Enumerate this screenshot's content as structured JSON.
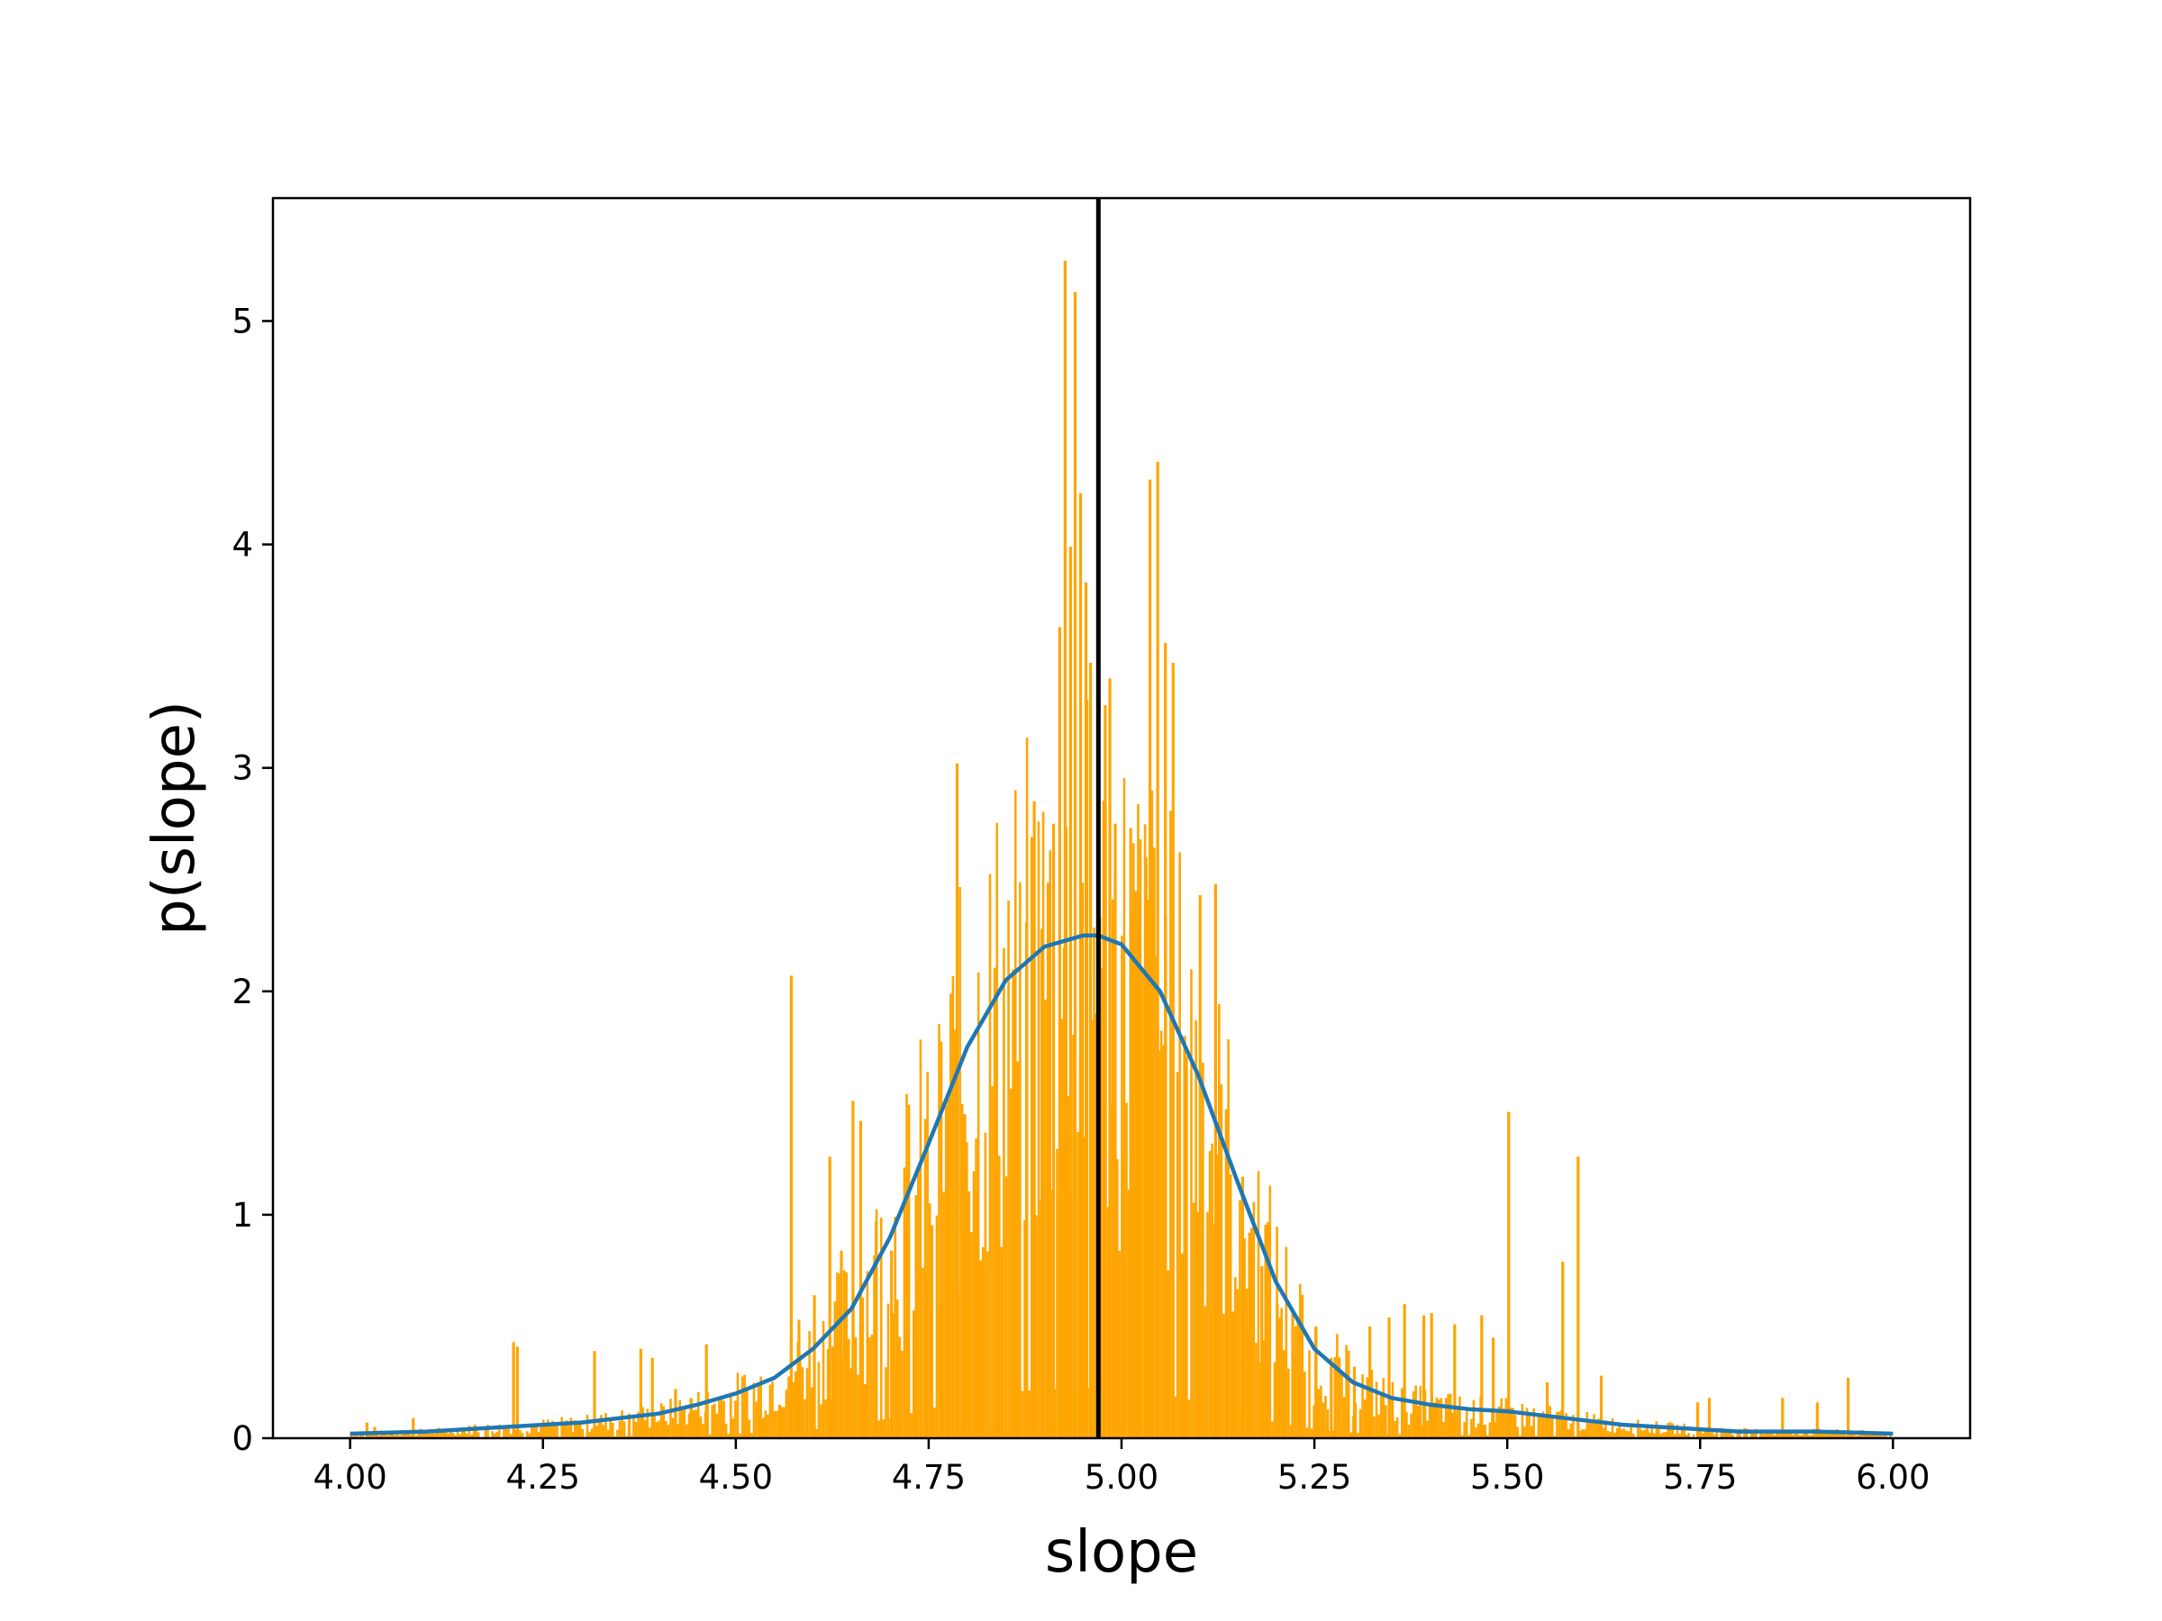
{
  "chart_data": {
    "type": "bar",
    "xlabel": "slope",
    "ylabel": "p(slope)",
    "xlim": [
      3.9,
      6.1
    ],
    "ylim": [
      0,
      5.55
    ],
    "x_ticks": [
      4.0,
      4.25,
      4.5,
      4.75,
      5.0,
      5.25,
      5.5,
      5.75,
      6.0
    ],
    "x_tick_labels": [
      "4.00",
      "4.25",
      "4.50",
      "4.75",
      "5.00",
      "5.25",
      "5.50",
      "5.75",
      "6.00"
    ],
    "y_ticks": [
      0,
      1,
      2,
      3,
      4,
      5
    ],
    "y_tick_labels": [
      "0",
      "1",
      "2",
      "3",
      "4",
      "5"
    ],
    "grid": false,
    "histogram_color": "#ffa500",
    "histogram_spikes": [
      [
        4.02,
        0.07
      ],
      [
        4.03,
        0.05
      ],
      [
        4.08,
        0.09
      ],
      [
        4.12,
        0.04
      ],
      [
        4.16,
        0.06
      ],
      [
        4.21,
        0.43
      ],
      [
        4.215,
        0.41
      ],
      [
        4.26,
        0.07
      ],
      [
        4.29,
        0.08
      ],
      [
        4.315,
        0.39
      ],
      [
        4.36,
        0.11
      ],
      [
        4.375,
        0.4
      ],
      [
        4.39,
        0.36
      ],
      [
        4.42,
        0.22
      ],
      [
        4.44,
        0.18
      ],
      [
        4.46,
        0.42
      ],
      [
        4.48,
        0.13
      ],
      [
        4.51,
        0.16
      ],
      [
        4.53,
        0.09
      ],
      [
        4.555,
        0.15
      ],
      [
        4.57,
        2.07
      ],
      [
        4.58,
        0.53
      ],
      [
        4.6,
        0.64
      ],
      [
        4.62,
        1.26
      ],
      [
        4.635,
        0.84
      ],
      [
        4.65,
        1.51
      ],
      [
        4.66,
        1.42
      ],
      [
        4.68,
        0.97
      ],
      [
        4.7,
        0.84
      ],
      [
        4.72,
        1.17
      ],
      [
        4.745,
        0.72
      ],
      [
        4.765,
        0.58
      ],
      [
        4.785,
        3.02
      ],
      [
        4.795,
        1.45
      ],
      [
        4.81,
        1.1
      ],
      [
        4.835,
        1.4
      ],
      [
        4.86,
        1.78
      ],
      [
        4.875,
        2.31
      ],
      [
        4.885,
        2.85
      ],
      [
        4.895,
        2.28
      ],
      [
        4.91,
        2.75
      ],
      [
        4.918,
        3.63
      ],
      [
        4.925,
        5.27
      ],
      [
        4.932,
        3.99
      ],
      [
        4.938,
        5.13
      ],
      [
        4.945,
        4.23
      ],
      [
        4.952,
        3.83
      ],
      [
        4.958,
        3.47
      ],
      [
        4.97,
        2.33
      ],
      [
        4.977,
        3.28
      ],
      [
        4.983,
        3.4
      ],
      [
        4.99,
        2.75
      ],
      [
        5.0,
        1.25
      ],
      [
        5.01,
        2.73
      ],
      [
        5.02,
        2.28
      ],
      [
        5.03,
        2.6
      ],
      [
        5.035,
        4.29
      ],
      [
        5.045,
        4.37
      ],
      [
        5.055,
        3.56
      ],
      [
        5.065,
        3.47
      ],
      [
        5.08,
        1.8
      ],
      [
        5.1,
        2.43
      ],
      [
        5.12,
        2.48
      ],
      [
        5.135,
        1.45
      ],
      [
        5.155,
        1.17
      ],
      [
        5.18,
        0.77
      ],
      [
        5.2,
        0.6
      ],
      [
        5.22,
        0.58
      ],
      [
        5.25,
        0.5
      ],
      [
        5.27,
        0.36
      ],
      [
        5.3,
        0.32
      ],
      [
        5.32,
        0.5
      ],
      [
        5.345,
        0.54
      ],
      [
        5.365,
        0.6
      ],
      [
        5.39,
        0.55
      ],
      [
        5.4,
        0.56
      ],
      [
        5.43,
        0.51
      ],
      [
        5.465,
        0.55
      ],
      [
        5.48,
        0.45
      ],
      [
        5.5,
        1.46
      ],
      [
        5.55,
        0.25
      ],
      [
        5.57,
        0.79
      ],
      [
        5.59,
        1.26
      ],
      [
        5.62,
        0.28
      ],
      [
        5.68,
        0.03
      ],
      [
        5.745,
        0.16
      ],
      [
        5.76,
        0.18
      ],
      [
        5.855,
        0.18
      ],
      [
        5.9,
        0.16
      ],
      [
        5.94,
        0.27
      ]
    ],
    "series": [
      {
        "type": "line",
        "color": "#1f77b4",
        "x": [
          4.0,
          4.1,
          4.2,
          4.3,
          4.4,
          4.45,
          4.5,
          4.55,
          4.6,
          4.65,
          4.7,
          4.75,
          4.8,
          4.85,
          4.9,
          4.95,
          4.97,
          5.0,
          5.05,
          5.1,
          5.15,
          5.2,
          5.25,
          5.3,
          5.35,
          5.4,
          5.45,
          5.5,
          5.55,
          5.6,
          5.65,
          5.7,
          5.75,
          5.8,
          5.9,
          6.0
        ],
        "y": [
          0.02,
          0.03,
          0.05,
          0.07,
          0.11,
          0.15,
          0.2,
          0.27,
          0.4,
          0.58,
          0.9,
          1.32,
          1.75,
          2.05,
          2.2,
          2.25,
          2.25,
          2.21,
          2.0,
          1.62,
          1.15,
          0.7,
          0.4,
          0.25,
          0.18,
          0.15,
          0.13,
          0.12,
          0.1,
          0.08,
          0.06,
          0.05,
          0.04,
          0.03,
          0.03,
          0.02
        ]
      }
    ],
    "reference_line": {
      "x": 4.97,
      "color": "#000000"
    }
  }
}
